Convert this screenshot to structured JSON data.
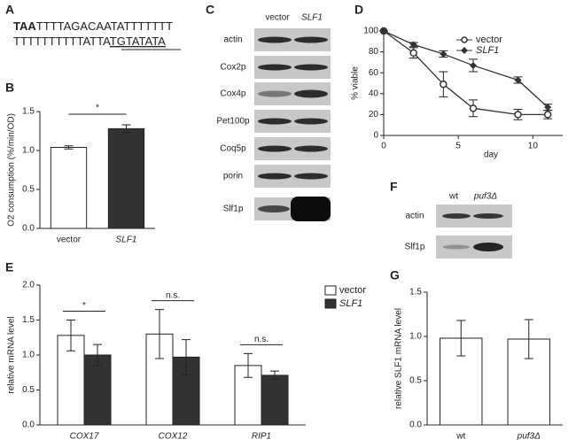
{
  "panel_labels": [
    "A",
    "B",
    "C",
    "D",
    "E",
    "F",
    "G"
  ],
  "panel_a": {
    "line1": [
      "TAA",
      "TTTTAGACAATATTTTTTT"
    ],
    "line2": [
      "TTTTTTTTTTATTA",
      "TGTATATA"
    ]
  },
  "panel_c": {
    "columns": [
      "vector",
      "SLF1"
    ],
    "rows": [
      "actin",
      "Cox2p",
      "Cox4p",
      "Pet100p",
      "Coq5p",
      "porin",
      "Slf1p"
    ]
  },
  "panel_f": {
    "columns": [
      "wt",
      "puf3Δ"
    ],
    "rows": [
      "actin",
      "Slf1p"
    ]
  },
  "chart_data": [
    {
      "type": "bar",
      "ylabel": "O2 consumption (%/min/OD)",
      "categories": [
        "vector",
        "SLF1"
      ],
      "values": [
        1.04,
        1.28
      ],
      "errors": [
        0.02,
        0.05
      ],
      "colors": [
        "#ffffff",
        "#333333"
      ],
      "ylim": [
        0,
        1.5
      ],
      "yticks": [
        {
          "value": 0,
          "label": "0.0"
        },
        {
          "value": 0.5,
          "label": "0.5"
        },
        {
          "value": 1,
          "label": "1.0"
        },
        {
          "value": 1.5,
          "label": "1.5"
        }
      ],
      "annotations": [
        "*"
      ]
    },
    {
      "type": "line",
      "xlabel": "day",
      "ylabel": "% viable",
      "x": [
        0,
        2,
        4,
        6,
        9,
        11
      ],
      "series": [
        {
          "name": "vector",
          "color": "#333333",
          "marker": "circle",
          "values": [
            100,
            79,
            49,
            26,
            20,
            20
          ],
          "errors": [
            0,
            5,
            12,
            8,
            5,
            4
          ]
        },
        {
          "name": "SLF1",
          "color": "#333333",
          "marker": "diamond",
          "values": [
            100,
            87,
            78,
            67,
            53,
            27
          ],
          "errors": [
            0,
            2,
            3,
            6,
            3,
            3
          ]
        }
      ],
      "xlim": [
        0,
        12
      ],
      "xticks": [
        0,
        5,
        10
      ],
      "ylim": [
        0,
        100
      ],
      "yticks": [
        0,
        20,
        40,
        60,
        80,
        100
      ],
      "legend": "upper right"
    },
    {
      "type": "bar",
      "ylabel": "relative mRNA level",
      "categories": [
        "COX17",
        "COX12",
        "RIP1"
      ],
      "series": [
        {
          "name": "vector",
          "color": "#ffffff",
          "values": [
            1.28,
            1.3,
            0.85
          ],
          "errors": [
            0.22,
            0.35,
            0.17
          ]
        },
        {
          "name": "SLF1",
          "color": "#333333",
          "values": [
            1.0,
            0.97,
            0.71
          ],
          "errors": [
            0.15,
            0.25,
            0.06
          ]
        }
      ],
      "ylim": [
        0,
        2
      ],
      "yticks": [
        {
          "value": 0,
          "label": "0.0"
        },
        {
          "value": 0.5,
          "label": "0.5"
        },
        {
          "value": 1,
          "label": "1.0"
        },
        {
          "value": 1.5,
          "label": "1.5"
        },
        {
          "value": 2,
          "label": "2.0"
        }
      ],
      "annotations": [
        "*",
        "n.s.",
        "n.s."
      ],
      "legend": "right"
    },
    {
      "type": "bar",
      "ylabel": "relative SLF1 mRNA level",
      "categories": [
        "wt",
        "puf3Δ"
      ],
      "values": [
        0.98,
        0.97
      ],
      "errors": [
        0.2,
        0.22
      ],
      "colors": [
        "#ffffff",
        "#ffffff"
      ],
      "ylim": [
        0,
        1.5
      ],
      "yticks": [
        {
          "value": 0,
          "label": "0.0"
        },
        {
          "value": 0.5,
          "label": "0.5"
        },
        {
          "value": 1,
          "label": "1.0"
        },
        {
          "value": 1.5,
          "label": "1.5"
        }
      ]
    }
  ]
}
